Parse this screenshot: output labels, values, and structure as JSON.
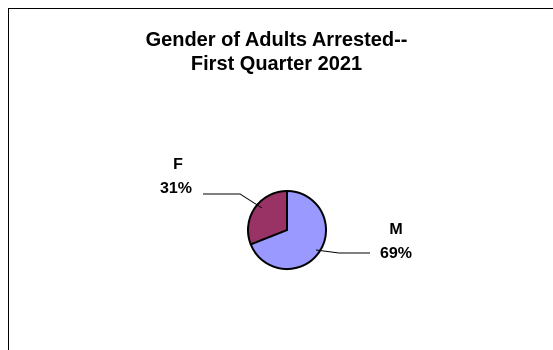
{
  "chart_data": {
    "type": "pie",
    "title_lines": [
      "Gender of Adults Arrested--",
      "First Quarter 2021"
    ],
    "slices": [
      {
        "label": "M",
        "percent_label": "69%",
        "value": 69,
        "color": "#9999FF"
      },
      {
        "label": "F",
        "percent_label": "31%",
        "value": 31,
        "color": "#993366"
      }
    ],
    "legend": "none"
  }
}
